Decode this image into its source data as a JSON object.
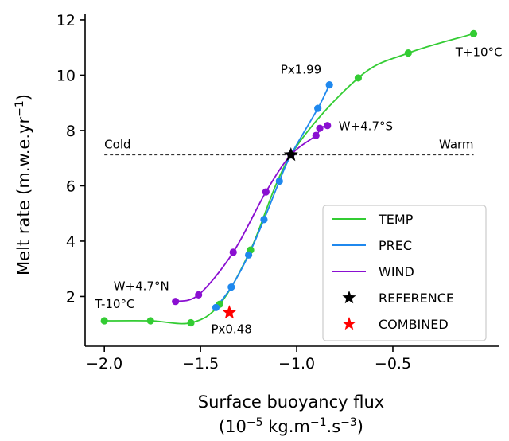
{
  "chart_data": {
    "type": "line",
    "title": "",
    "xlabel_line1": "Surface buoyancy flux",
    "xlabel_line2": {
      "prefix": "(10",
      "exp1": "−5",
      "mid": " kg.m",
      "exp2": "−1",
      "mid2": ".s",
      "exp3": "−3",
      "suffix": ")"
    },
    "ylabel": {
      "main": "Melt rate (m.w.e.yr",
      "exp": "−1",
      "suffix": ")"
    },
    "xlim": [
      -2.1,
      0.05
    ],
    "ylim": [
      0.2,
      12.2
    ],
    "xticks": [
      -2.0,
      -1.5,
      -1.0,
      -0.5
    ],
    "xtick_labels": [
      "−2.0",
      "−1.5",
      "−1.0",
      "−0.5"
    ],
    "yticks": [
      2,
      4,
      6,
      8,
      10,
      12
    ],
    "ytick_labels": [
      "2",
      "4",
      "6",
      "8",
      "10",
      "12"
    ],
    "grid": false,
    "legend_position": "lower right",
    "reference_line": {
      "y": 7.12,
      "x_from": -2.0,
      "x_to": -0.08,
      "left_label": "Cold",
      "right_label": "Warm"
    },
    "series": [
      {
        "name": "TEMP",
        "color": "#33cc33",
        "points": [
          [
            -2.0,
            1.12
          ],
          [
            -1.76,
            1.12
          ],
          [
            -1.55,
            1.05
          ],
          [
            -1.4,
            1.72
          ],
          [
            -1.24,
            3.68
          ],
          [
            -1.03,
            7.12
          ],
          [
            -0.68,
            9.9
          ],
          [
            -0.42,
            10.8
          ],
          [
            -0.08,
            11.5
          ]
        ]
      },
      {
        "name": "PREC",
        "color": "#1f88ee",
        "points": [
          [
            -1.42,
            1.6
          ],
          [
            -1.34,
            2.34
          ],
          [
            -1.25,
            3.5
          ],
          [
            -1.17,
            4.78
          ],
          [
            -1.09,
            6.17
          ],
          [
            -1.03,
            7.12
          ],
          [
            -0.89,
            8.8
          ],
          [
            -0.83,
            9.65
          ]
        ]
      },
      {
        "name": "WIND",
        "color": "#8a0fd1",
        "points": [
          [
            -1.63,
            1.82
          ],
          [
            -1.51,
            2.06
          ],
          [
            -1.33,
            3.6
          ],
          [
            -1.16,
            5.78
          ],
          [
            -1.03,
            7.12
          ],
          [
            -0.9,
            7.82
          ],
          [
            -0.88,
            8.08
          ],
          [
            -0.84,
            8.18
          ]
        ]
      }
    ],
    "markers": [
      {
        "name": "REFERENCE",
        "x": -1.03,
        "y": 7.12,
        "color": "#000000",
        "symbol": "star"
      },
      {
        "name": "COMBINED",
        "x": -1.35,
        "y": 1.42,
        "color": "#ff0000",
        "symbol": "star"
      }
    ],
    "annotations": [
      {
        "text": "T+10°C",
        "x": -0.08,
        "y": 11.5,
        "anchor": "end",
        "dx": 36,
        "dy": 28
      },
      {
        "text": "T-10°C",
        "x": -2.0,
        "y": 1.12,
        "anchor": "start",
        "dx": -12,
        "dy": -16
      },
      {
        "text": "Px1.99",
        "x": -0.83,
        "y": 9.65,
        "anchor": "end",
        "dx": -10,
        "dy": -14
      },
      {
        "text": "Px0.48",
        "x": -1.42,
        "y": 1.6,
        "anchor": "start",
        "dx": -6,
        "dy": 32
      },
      {
        "text": "W+4.7°S",
        "x": -0.84,
        "y": 8.18,
        "anchor": "start",
        "dx": 14,
        "dy": 6
      },
      {
        "text": "W+4.7°N",
        "x": -1.63,
        "y": 1.82,
        "anchor": "end",
        "dx": -8,
        "dy": -14
      }
    ]
  }
}
